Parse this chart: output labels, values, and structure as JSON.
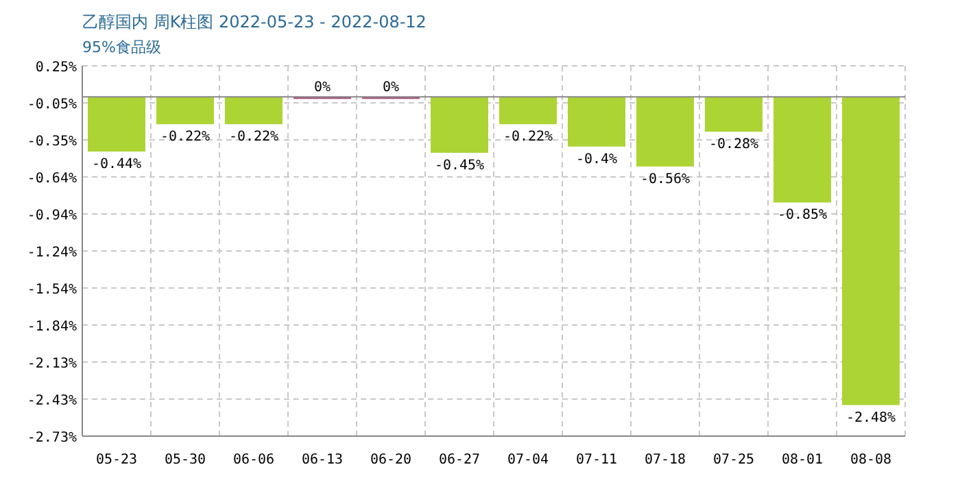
{
  "chart_data": {
    "type": "bar",
    "title": "乙醇国内 周K柱图 2022-05-23 - 2022-08-12",
    "subtitle": "95%食品级",
    "categories": [
      "05-23",
      "05-30",
      "06-06",
      "06-13",
      "06-20",
      "06-27",
      "07-04",
      "07-11",
      "07-18",
      "07-25",
      "08-01",
      "08-08"
    ],
    "values": [
      -0.44,
      -0.22,
      -0.22,
      0,
      0,
      -0.45,
      -0.22,
      -0.4,
      -0.56,
      -0.28,
      -0.85,
      -2.48
    ],
    "colors": [
      "#acd435",
      "#acd435",
      "#acd435",
      "#b0507e",
      "#b0507e",
      "#acd435",
      "#acd435",
      "#acd435",
      "#acd435",
      "#acd435",
      "#acd435",
      "#acd435"
    ],
    "value_labels": [
      "-0.44%",
      "-0.22%",
      "-0.22%",
      "0%",
      "0%",
      "-0.45%",
      "-0.22%",
      "-0.4%",
      "-0.56%",
      "-0.28%",
      "-0.85%",
      "-2.48%"
    ],
    "ylim": [
      -2.73,
      0.25
    ],
    "yticks": [
      {
        "value": 0.25,
        "label": "0.25%"
      },
      {
        "value": -0.048,
        "label": "-0.05%"
      },
      {
        "value": -0.346,
        "label": "-0.35%"
      },
      {
        "value": -0.644,
        "label": "-0.64%"
      },
      {
        "value": -0.942,
        "label": "-0.94%"
      },
      {
        "value": -1.24,
        "label": "-1.24%"
      },
      {
        "value": -1.538,
        "label": "-1.54%"
      },
      {
        "value": -1.836,
        "label": "-1.84%"
      },
      {
        "value": -2.134,
        "label": "-2.13%"
      },
      {
        "value": -2.432,
        "label": "-2.43%"
      },
      {
        "value": -2.73,
        "label": "-2.73%"
      }
    ],
    "grid": true
  }
}
